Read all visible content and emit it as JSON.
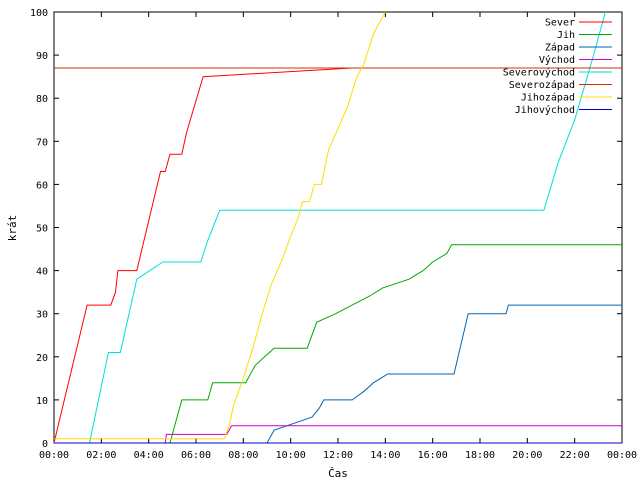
{
  "chart_data": {
    "type": "line",
    "title": "",
    "xlabel": "Čas",
    "ylabel": "krát",
    "xlim": [
      0,
      24
    ],
    "ylim": [
      0,
      100
    ],
    "x_ticks": [
      0,
      2,
      4,
      6,
      8,
      10,
      12,
      14,
      16,
      18,
      20,
      22,
      24
    ],
    "x_tick_labels": [
      "00:00",
      "02:00",
      "04:00",
      "06:00",
      "08:00",
      "10:00",
      "12:00",
      "14:00",
      "16:00",
      "18:00",
      "20:00",
      "22:00",
      "00:00"
    ],
    "y_ticks": [
      0,
      10,
      20,
      30,
      40,
      50,
      60,
      70,
      80,
      90,
      100
    ],
    "y_tick_labels": [
      "0",
      "10",
      "20",
      "30",
      "40",
      "50",
      "60",
      "70",
      "80",
      "90",
      "100"
    ],
    "grid": false,
    "legend_position": "top-right",
    "series": [
      {
        "name": "Sever",
        "color": "#ff0000",
        "x": [
          0,
          1.4,
          2.4,
          2.6,
          2.7,
          3.5,
          4.5,
          4.7,
          4.9,
          5.4,
          5.6,
          6.3,
          12.6,
          24
        ],
        "y": [
          0,
          32,
          32,
          35,
          40,
          40,
          63,
          63,
          67,
          67,
          72,
          85,
          87,
          87
        ]
      },
      {
        "name": "Jih",
        "color": "#00aa00",
        "x": [
          4.9,
          5.1,
          5.4,
          6.5,
          6.7,
          8.1,
          8.5,
          8.9,
          9.3,
          10.7,
          11.1,
          11.9,
          13.3,
          13.9,
          15.0,
          15.6,
          16.0,
          16.6,
          16.8,
          24
        ],
        "y": [
          0,
          4,
          10,
          10,
          14,
          14,
          18,
          20,
          22,
          22,
          28,
          30,
          34,
          36,
          38,
          40,
          42,
          44,
          46,
          46
        ]
      },
      {
        "name": "Západ",
        "color": "#0066b3",
        "x": [
          9.0,
          9.3,
          10.9,
          11.2,
          11.4,
          12.6,
          13.1,
          13.5,
          14.1,
          16.9,
          17.5,
          19.1,
          19.2,
          24
        ],
        "y": [
          0,
          3,
          6,
          8,
          10,
          10,
          12,
          14,
          16,
          16,
          30,
          30,
          32,
          32
        ]
      },
      {
        "name": "Východ",
        "color": "#cc00cc",
        "x": [
          0,
          4.7,
          4.75,
          7.3,
          7.5,
          24
        ],
        "y": [
          0,
          0,
          2,
          2,
          4,
          4
        ]
      },
      {
        "name": "Severovýchod",
        "color": "#00dddd",
        "x": [
          1.5,
          2.3,
          2.8,
          3.5,
          4.6,
          6.2,
          6.5,
          7.0,
          20.7,
          21.3,
          22.0,
          22.8,
          23.3
        ],
        "y": [
          0,
          21,
          21,
          38,
          42,
          42,
          47,
          54,
          54,
          65,
          75,
          90,
          100
        ]
      },
      {
        "name": "Severozápad",
        "color": "#cc3300",
        "x": [
          0,
          24
        ],
        "y": [
          87,
          87
        ]
      },
      {
        "name": "Jihozápad",
        "color": "#ffdd00",
        "x": [
          0,
          7.2,
          7.4,
          7.6,
          8.0,
          8.4,
          8.8,
          9.2,
          9.6,
          10.0,
          10.3,
          10.5,
          10.8,
          11.0,
          11.3,
          11.6,
          12.0,
          12.4,
          12.8,
          13.1,
          13.5,
          14.0
        ],
        "y": [
          1,
          1,
          4,
          9,
          15,
          22,
          30,
          37,
          42,
          48,
          52,
          56,
          56,
          60,
          60,
          68,
          73,
          78,
          85,
          88,
          95,
          100
        ]
      },
      {
        "name": "Jihovýchod",
        "color": "#0000cc",
        "x": [
          0,
          24
        ],
        "y": [
          0,
          0
        ]
      }
    ]
  }
}
